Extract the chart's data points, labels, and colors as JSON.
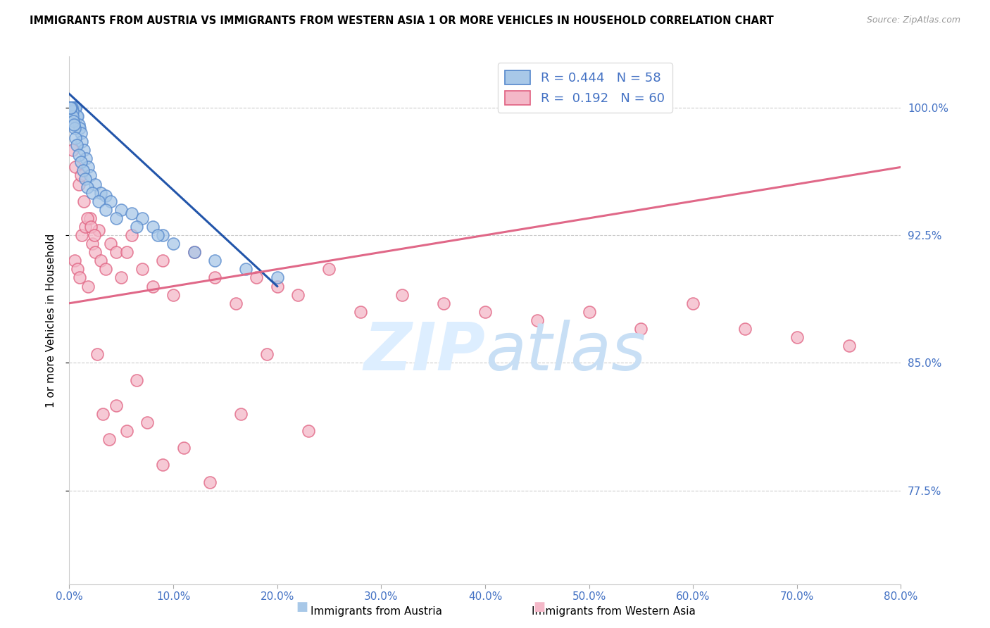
{
  "title": "IMMIGRANTS FROM AUSTRIA VS IMMIGRANTS FROM WESTERN ASIA 1 OR MORE VEHICLES IN HOUSEHOLD CORRELATION CHART",
  "source": "Source: ZipAtlas.com",
  "ylabel": "1 or more Vehicles in Household",
  "xlim": [
    0.0,
    80.0
  ],
  "ylim": [
    72.0,
    103.0
  ],
  "yticks": [
    77.5,
    85.0,
    92.5,
    100.0
  ],
  "xticks": [
    0.0,
    10.0,
    20.0,
    30.0,
    40.0,
    50.0,
    60.0,
    70.0,
    80.0
  ],
  "color_austria": "#a8c8e8",
  "color_austria_edge": "#5588cc",
  "color_austria_line": "#2255aa",
  "color_western": "#f4b8c8",
  "color_western_edge": "#e06080",
  "color_western_line": "#e06888",
  "color_axis_text": "#4472c4",
  "color_grid": "#cccccc",
  "watermark_color": "#ddeeff",
  "austria_x": [
    0.1,
    0.15,
    0.2,
    0.25,
    0.3,
    0.35,
    0.4,
    0.45,
    0.5,
    0.55,
    0.6,
    0.7,
    0.8,
    0.9,
    1.0,
    1.1,
    1.2,
    1.4,
    1.6,
    1.8,
    2.0,
    2.5,
    3.0,
    3.5,
    4.0,
    5.0,
    6.0,
    7.0,
    8.0,
    9.0,
    0.12,
    0.18,
    0.22,
    0.28,
    0.33,
    0.38,
    0.48,
    0.6,
    0.75,
    0.95,
    1.15,
    1.35,
    1.55,
    1.75,
    2.2,
    2.8,
    3.5,
    4.5,
    6.5,
    8.5,
    10.0,
    12.0,
    14.0,
    17.0,
    20.0,
    0.08,
    0.13,
    0.42
  ],
  "austria_y": [
    100.0,
    100.0,
    100.0,
    100.0,
    100.0,
    100.0,
    100.0,
    100.0,
    100.0,
    100.0,
    100.0,
    99.5,
    99.5,
    99.0,
    98.8,
    98.5,
    98.0,
    97.5,
    97.0,
    96.5,
    96.0,
    95.5,
    95.0,
    94.8,
    94.5,
    94.0,
    93.8,
    93.5,
    93.0,
    92.5,
    100.0,
    100.0,
    100.0,
    99.8,
    99.5,
    99.2,
    98.8,
    98.2,
    97.8,
    97.2,
    96.8,
    96.3,
    95.8,
    95.3,
    95.0,
    94.5,
    94.0,
    93.5,
    93.0,
    92.5,
    92.0,
    91.5,
    91.0,
    90.5,
    90.0,
    100.0,
    100.0,
    99.0
  ],
  "western_x": [
    0.5,
    0.8,
    1.0,
    1.2,
    1.5,
    1.8,
    2.0,
    2.2,
    2.5,
    2.8,
    3.0,
    3.5,
    4.0,
    4.5,
    5.0,
    5.5,
    6.0,
    7.0,
    8.0,
    9.0,
    10.0,
    12.0,
    14.0,
    16.0,
    18.0,
    20.0,
    22.0,
    25.0,
    28.0,
    32.0,
    36.0,
    40.0,
    45.0,
    50.0,
    55.0,
    60.0,
    65.0,
    70.0,
    75.0,
    0.3,
    0.6,
    0.9,
    1.1,
    1.4,
    1.7,
    2.1,
    2.4,
    2.7,
    3.2,
    3.8,
    4.5,
    5.5,
    6.5,
    7.5,
    9.0,
    11.0,
    13.5,
    16.5,
    19.0,
    23.0
  ],
  "western_y": [
    91.0,
    90.5,
    90.0,
    92.5,
    93.0,
    89.5,
    93.5,
    92.0,
    91.5,
    92.8,
    91.0,
    90.5,
    92.0,
    91.5,
    90.0,
    91.5,
    92.5,
    90.5,
    89.5,
    91.0,
    89.0,
    91.5,
    90.0,
    88.5,
    90.0,
    89.5,
    89.0,
    90.5,
    88.0,
    89.0,
    88.5,
    88.0,
    87.5,
    88.0,
    87.0,
    88.5,
    87.0,
    86.5,
    86.0,
    97.5,
    96.5,
    95.5,
    96.0,
    94.5,
    93.5,
    93.0,
    92.5,
    85.5,
    82.0,
    80.5,
    82.5,
    81.0,
    84.0,
    81.5,
    79.0,
    80.0,
    78.0,
    82.0,
    85.5,
    81.0
  ],
  "blue_line_x0": 0.0,
  "blue_line_y0": 100.8,
  "blue_line_x1": 20.0,
  "blue_line_y1": 89.5,
  "pink_line_x0": 0.0,
  "pink_line_y0": 88.5,
  "pink_line_x1": 80.0,
  "pink_line_y1": 96.5
}
